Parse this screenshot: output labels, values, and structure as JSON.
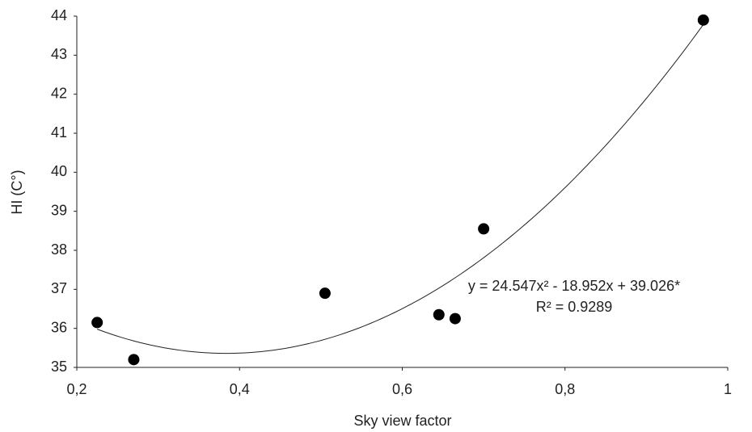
{
  "chart_data": {
    "type": "scatter",
    "x_label": "Sky view factor",
    "y_label": "HI (C°)",
    "x": [
      0.225,
      0.27,
      0.505,
      0.645,
      0.665,
      0.7,
      0.97
    ],
    "values": [
      36.15,
      35.2,
      36.9,
      36.35,
      36.25,
      38.55,
      43.9
    ],
    "color": "#000000",
    "xlim": [
      0.2,
      1
    ],
    "xticks": [
      {
        "value": 0.2,
        "label": "0,2"
      },
      {
        "value": 0.4,
        "label": "0,4"
      },
      {
        "value": 0.6,
        "label": "0,6"
      },
      {
        "value": 0.8,
        "label": "0,8"
      },
      1
    ],
    "ylim": [
      35,
      44
    ],
    "yticks": [
      35,
      36,
      37,
      38,
      39,
      40,
      41,
      42,
      43,
      44
    ],
    "grid": false,
    "trendline": "polynomial",
    "annotation": [
      "y = 24.547x² - 18.952x + 39.026*",
      "R² = 0.9289"
    ]
  }
}
